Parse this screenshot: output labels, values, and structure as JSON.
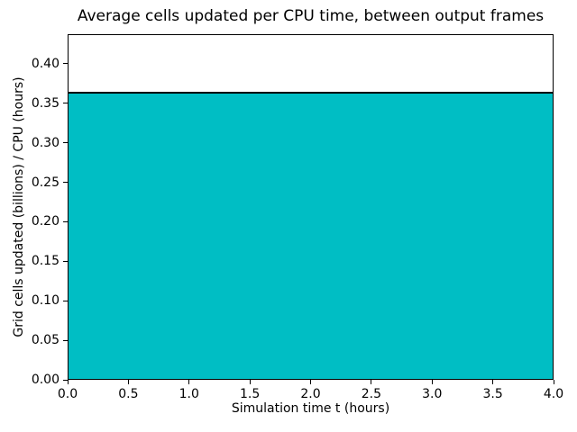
{
  "chart_data": {
    "type": "area",
    "title": "Average cells updated per CPU time, between output frames",
    "xlabel": "Simulation time t (hours)",
    "ylabel": "Grid cells updated (billions) / CPU (hours)",
    "x": [
      0.0,
      4.0
    ],
    "y": [
      0.365,
      0.365
    ],
    "value": 0.365,
    "xlim": [
      0.0,
      4.0
    ],
    "ylim": [
      0.0,
      0.4375
    ],
    "xticks": [
      0.0,
      0.5,
      1.0,
      1.5,
      2.0,
      2.5,
      3.0,
      3.5,
      4.0
    ],
    "xtick_labels": [
      "0.0",
      "0.5",
      "1.0",
      "1.5",
      "2.0",
      "2.5",
      "3.0",
      "3.5",
      "4.0"
    ],
    "yticks": [
      0.0,
      0.05,
      0.1,
      0.15,
      0.2,
      0.25,
      0.3,
      0.35,
      0.4
    ],
    "ytick_labels": [
      "0.00",
      "0.05",
      "0.10",
      "0.15",
      "0.20",
      "0.25",
      "0.30",
      "0.35",
      "0.40"
    ],
    "grid": false,
    "legend": null,
    "colors": {
      "fill": "#00bec4",
      "line": "#000000",
      "axes": "#000000",
      "background": "#ffffff",
      "text": "#000000"
    }
  }
}
